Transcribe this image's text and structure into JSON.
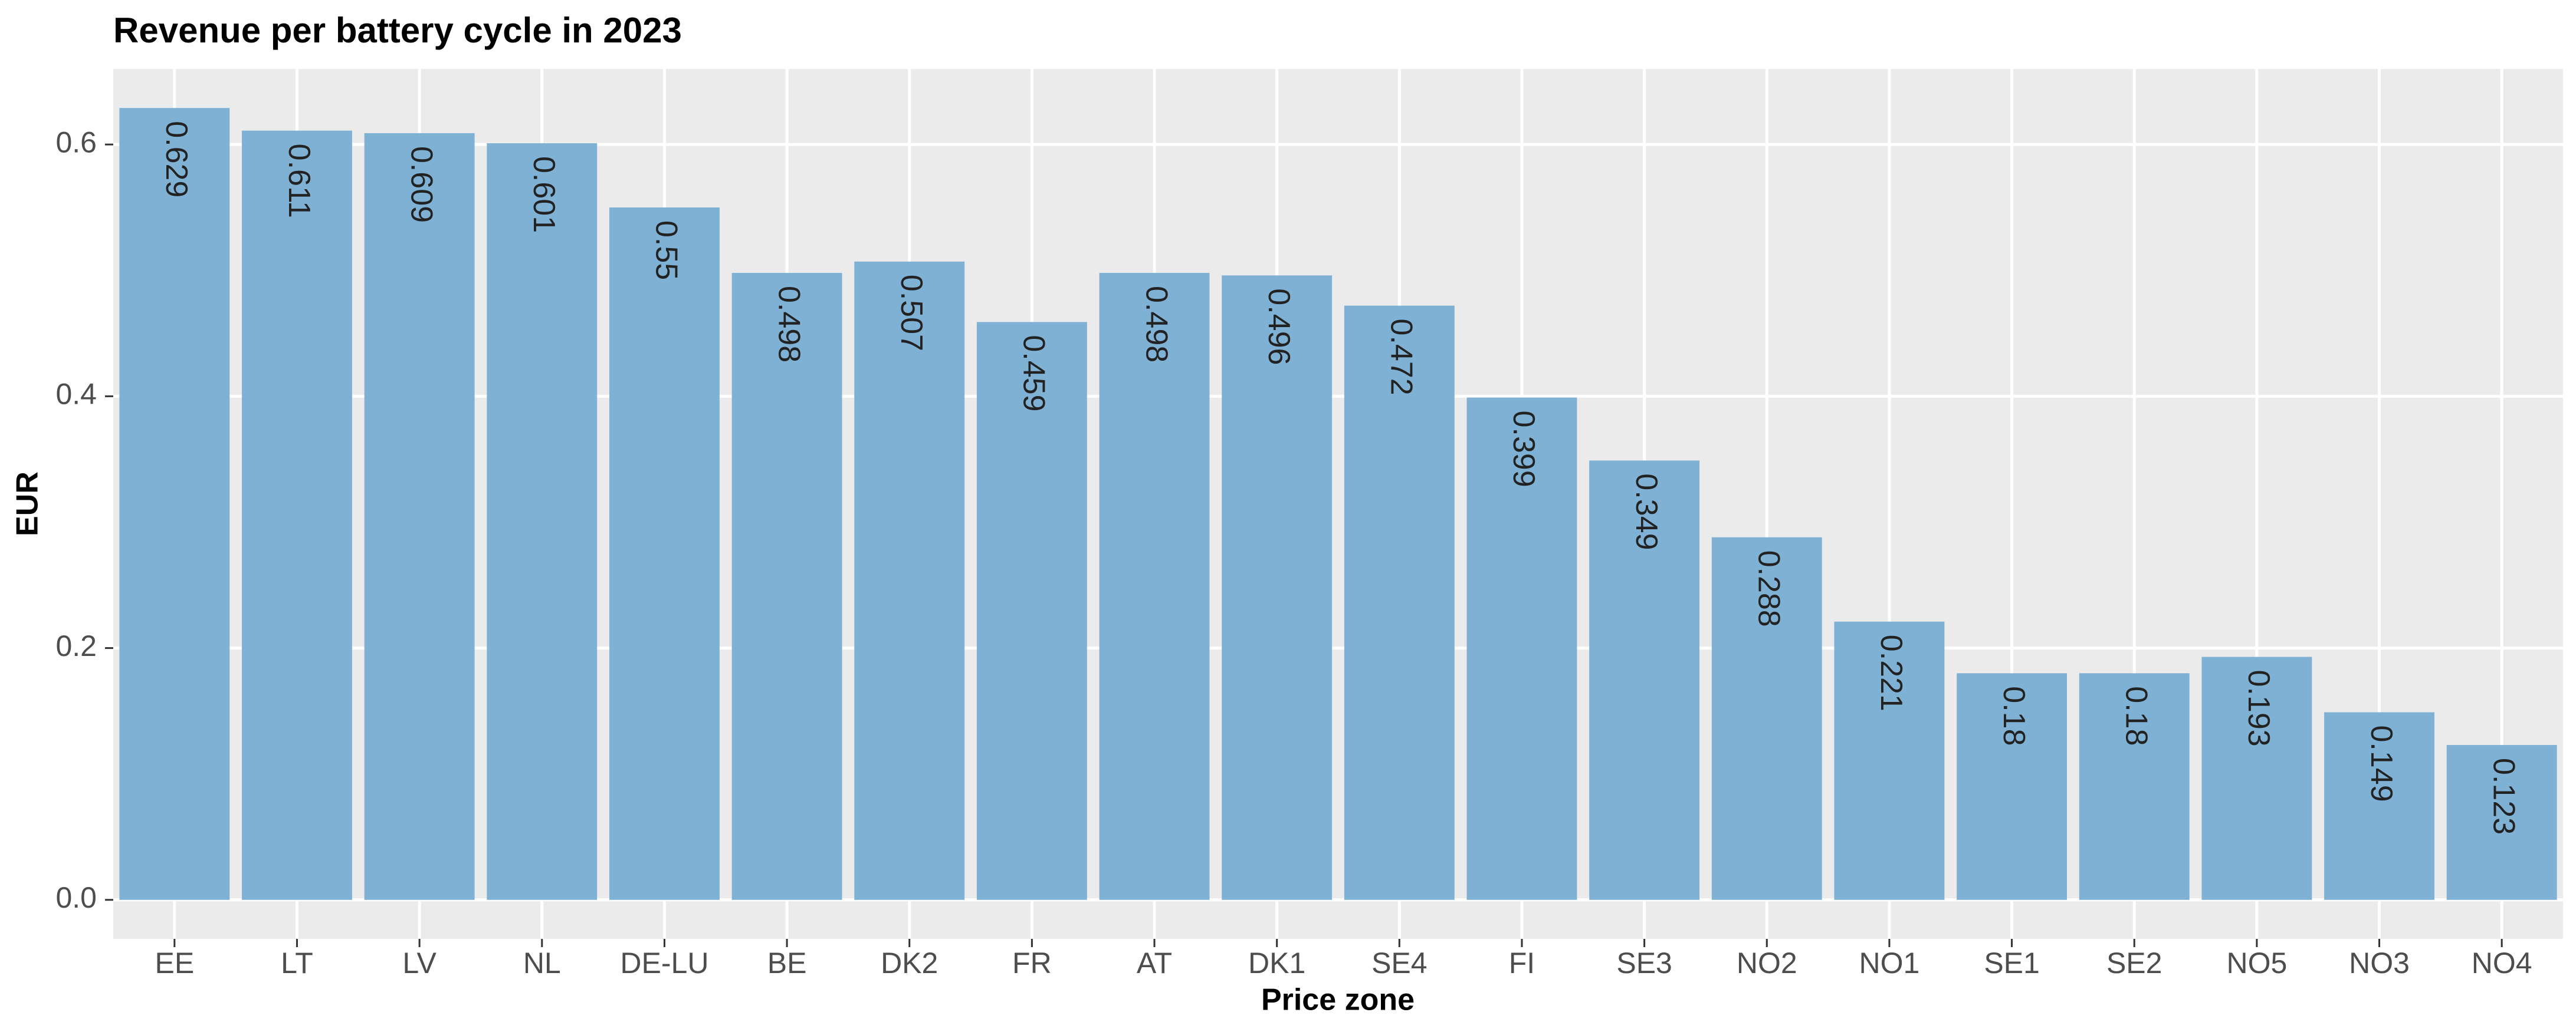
{
  "chart_data": {
    "type": "bar",
    "title": "Revenue per battery cycle in 2023",
    "x_label": "Price zone",
    "y_label": "EUR",
    "categories": [
      "EE",
      "LT",
      "LV",
      "NL",
      "DE-LU",
      "BE",
      "DK2",
      "FR",
      "AT",
      "DK1",
      "SE4",
      "FI",
      "SE3",
      "NO2",
      "NO1",
      "SE1",
      "SE2",
      "NO5",
      "NO3",
      "NO4"
    ],
    "values": [
      0.629,
      0.611,
      0.609,
      0.601,
      0.55,
      0.498,
      0.507,
      0.459,
      0.498,
      0.496,
      0.472,
      0.399,
      0.349,
      0.288,
      0.221,
      0.18,
      0.18,
      0.193,
      0.149,
      0.123
    ],
    "color": "#7fb1d5",
    "ylim": [
      -0.031,
      0.66
    ],
    "yticks": [
      {
        "value": 0,
        "label": "0.0"
      },
      0.2,
      0.4,
      0.6
    ],
    "grid": true
  }
}
